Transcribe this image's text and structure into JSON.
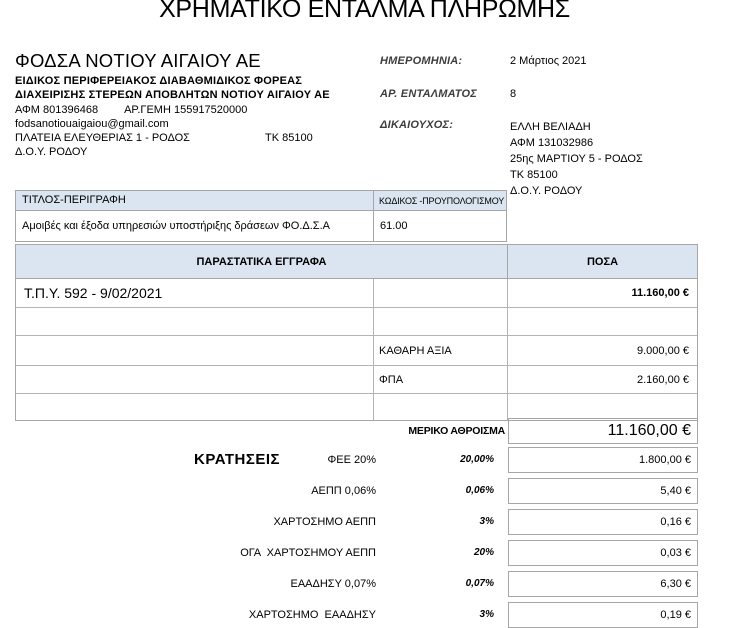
{
  "page": {
    "title": "ΧΡΗΜΑΤΙΚΟ ΕΝΤΑΛΜΑ ΠΛΗΡΩΜΗΣ"
  },
  "issuer": {
    "name": "ΦΟΔΣΑ ΝΟΤΙΟΥ ΑΙΓΑΙΟΥ ΑΕ",
    "subtitle_line1": "ΕΙΔΙΚΟΣ ΠΕΡΙΦΕΡΕΙΑΚΟΣ ΔΙΑΒΑΘΜΙΔΙΚΟΣ ΦΟΡΕΑΣ",
    "subtitle_line2": "ΔΙΑΧΕΙΡΙΣΗΣ ΣΤΕΡΕΩΝ ΑΠΟΒΛΗΤΩΝ ΝΟΤΙΟΥ ΑΙΓΑΙΟΥ ΑΕ",
    "afm": "ΑΦΜ 801396468",
    "gemi": "ΑΡ.ΓΕΜΗ 155917520000",
    "email": "fodsanotiouaigaiou@gmail.com",
    "address": "ΠΛΑΤΕΙΑ ΕΛΕΥΘΕΡΙΑΣ 1 - ΡΟΔΟΣ",
    "postal_code": "ΤΚ 85100",
    "tax_office": "Δ.Ο.Υ. ΡΟΔΟΥ"
  },
  "meta": {
    "date_label": "ΗΜΕΡΟΜΗΝΙΑ:",
    "date_value": "2 Μάρτιος 2021",
    "order_no_label": "ΑΡ. ΕΝΤΑΛΜΑΤΟΣ",
    "order_no_value": "8",
    "beneficiary_label": "ΔΙΚΑΙΟΥΧΟΣ:",
    "beneficiary_lines": [
      "ΕΛΛΗ ΒΕΛΙΑΔΗ",
      "ΑΦΜ 131032986",
      "25ης ΜΑΡΤΙΟΥ 5 - ΡΟΔΟΣ",
      "ΤΚ 85100",
      "Δ.Ο.Υ. ΡΟΔΟΥ"
    ]
  },
  "description_table": {
    "title_header": "ΤΙΤΛΟΣ-ΠΕΡΙΓΡΑΦΗ",
    "code_header": "ΚΩΔΙΚΟΣ -ΠΡΟΥΠΟΛΟΓΙΣΜΟΥ",
    "description": "Αμοιβές και έξοδα υπηρεσιών υποστήριξης δράσεων ΦΟ.Δ.Σ.Α",
    "budget_code": "61.00"
  },
  "documents_table": {
    "documents_header": "ΠΑΡΑΣΤΑΤΙΚΑ ΕΓΓΡΑΦΑ",
    "amounts_header": "ΠΟΣΑ",
    "invoice_ref": "Τ.Π.Υ. 592 - 9/02/2021",
    "invoice_amount": "11.160,00 €",
    "net_label": "ΚΑΘΑΡΗ ΑΞΙΑ",
    "net_amount": "9.000,00 €",
    "vat_label": "ΦΠΑ",
    "vat_amount": "2.160,00 €"
  },
  "totals": {
    "subtotal_label": "ΜΕΡΙΚΟ ΑΘΡΟΙΣΜΑ",
    "subtotal_amount": "11.160,00 €",
    "deductions_title": "ΚΡΑΤΗΣΕΙΣ",
    "deductions": [
      {
        "name": "ΦΕΕ 20%",
        "rate": "20,00%",
        "amount": "1.800,00 €"
      },
      {
        "name": "ΑΕΠΠ 0,06%",
        "rate": "0,06%",
        "amount": "5,40 €"
      },
      {
        "name": "ΧΑΡΤΟΣΗΜΟ ΑΕΠΠ",
        "rate": "3%",
        "amount": "0,16 €"
      },
      {
        "name": "ΟΓΑ  ΧΑΡΤΟΣΗΜΟΥ ΑΕΠΠ",
        "rate": "20%",
        "amount": "0,03 €"
      },
      {
        "name": "ΕΑΑΔΗΣΥ 0,07%",
        "rate": "0,07%",
        "amount": "6,30 €"
      },
      {
        "name": "ΧΑΡΤΟΣΗΜΟ  ΕΑΑΔΗΣΥ",
        "rate": "3%",
        "amount": "0,19 €"
      }
    ]
  },
  "colors": {
    "table_header_bg": "#dbe5f1",
    "table_border": "#a6a6a6"
  }
}
